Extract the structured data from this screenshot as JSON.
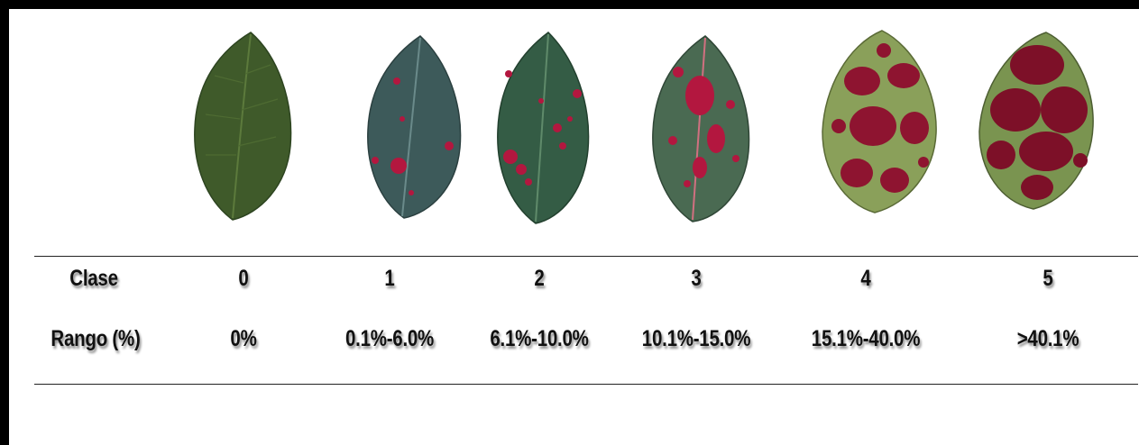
{
  "table": {
    "header_label": "Clase",
    "range_label": "Rango (%)",
    "classes": [
      {
        "clase": "0",
        "rango": "0%",
        "leaf_color": "#3f5a2a",
        "lesion_color": "#b3173f",
        "severity": 0.0
      },
      {
        "clase": "1",
        "rango": "0.1%-6.0%",
        "leaf_color": "#3d5a5a",
        "lesion_color": "#b3173f",
        "severity": 0.05
      },
      {
        "clase": "2",
        "rango": "6.1%-10.0%",
        "leaf_color": "#345c45",
        "lesion_color": "#b3173f",
        "severity": 0.09
      },
      {
        "clase": "3",
        "rango": "10.1%-15.0%",
        "leaf_color": "#4a6a52",
        "lesion_color": "#b3173f",
        "severity": 0.14
      },
      {
        "clase": "4",
        "rango": "15.1%-40.0%",
        "leaf_color": "#8aa05a",
        "lesion_color": "#8e1430",
        "severity": 0.38
      },
      {
        "clase": "5",
        "rango": ">40.1%",
        "leaf_color": "#7a9450",
        "lesion_color": "#7d1028",
        "severity": 0.6
      }
    ]
  }
}
